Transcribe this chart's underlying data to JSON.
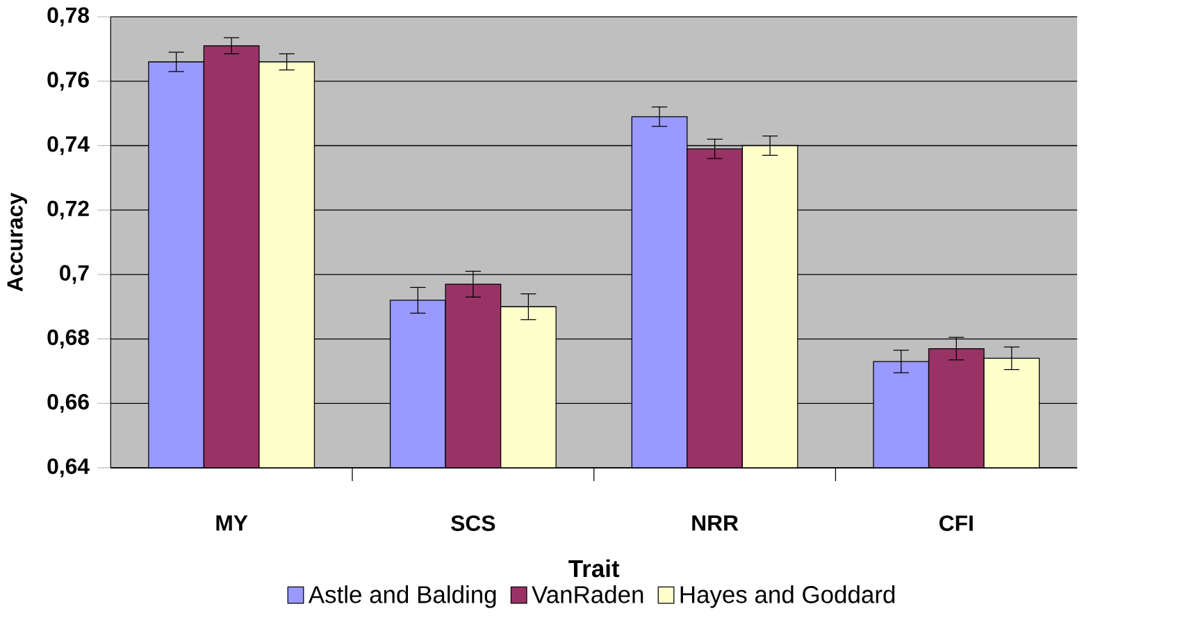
{
  "chart_data": {
    "type": "bar",
    "xlabel": "Trait",
    "ylabel": "Accuracy",
    "categories": [
      "MY",
      "SCS",
      "NRR",
      "CFI"
    ],
    "series": [
      {
        "name": "Astle and Balding",
        "color": "#9999ff",
        "values": [
          0.766,
          0.692,
          0.749,
          0.673
        ],
        "errors": [
          0.003,
          0.004,
          0.003,
          0.0035
        ]
      },
      {
        "name": "VanRaden",
        "color": "#993366",
        "values": [
          0.771,
          0.697,
          0.739,
          0.677
        ],
        "errors": [
          0.0025,
          0.004,
          0.003,
          0.0035
        ]
      },
      {
        "name": "Hayes and Goddard",
        "color": "#ffffcc",
        "values": [
          0.766,
          0.69,
          0.74,
          0.674
        ],
        "errors": [
          0.0025,
          0.004,
          0.003,
          0.0035
        ]
      }
    ],
    "ylim": [
      0.64,
      0.78
    ],
    "yticks": [
      {
        "value": 0.64,
        "label": "0,64"
      },
      {
        "value": 0.66,
        "label": "0,66"
      },
      {
        "value": 0.68,
        "label": "0,68"
      },
      {
        "value": 0.7,
        "label": "0,7"
      },
      {
        "value": 0.72,
        "label": "0,72"
      },
      {
        "value": 0.74,
        "label": "0,74"
      },
      {
        "value": 0.76,
        "label": "0,76"
      },
      {
        "value": 0.78,
        "label": "0,78"
      }
    ],
    "grid": "y",
    "legend": "bottom"
  }
}
